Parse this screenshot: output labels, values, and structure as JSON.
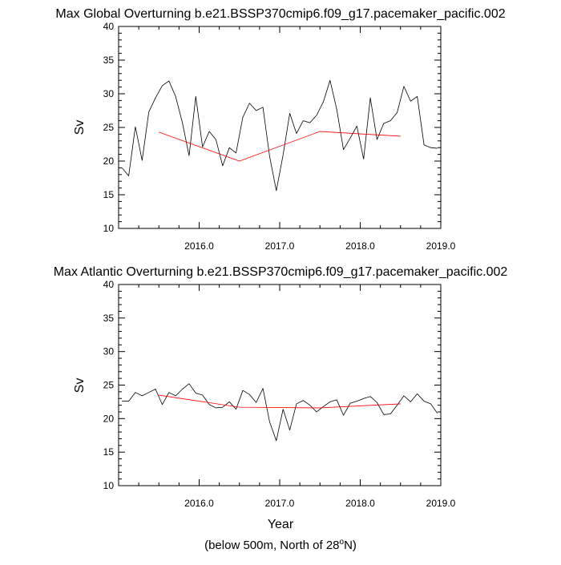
{
  "chart_data": [
    {
      "type": "line",
      "title": "Max Global Overturning b.e21.BSSP370cmip6.f09_g17.pacemaker_pacific.002",
      "ylabel": "Sv",
      "xlabel": "",
      "xlim": [
        2015.0,
        2019.0
      ],
      "ylim": [
        10,
        40
      ],
      "xticks": [
        2016.0,
        2017.0,
        2018.0,
        2019.0
      ],
      "xtick_labels": [
        "2016.0",
        "2017.0",
        "2018.0",
        "2019.0"
      ],
      "yticks": [
        10,
        15,
        20,
        25,
        30,
        35,
        40
      ],
      "series": [
        {
          "color": "#000000",
          "x": [
            2015.042,
            2015.125,
            2015.208,
            2015.292,
            2015.375,
            2015.458,
            2015.542,
            2015.625,
            2015.708,
            2015.792,
            2015.875,
            2015.958,
            2016.042,
            2016.125,
            2016.208,
            2016.292,
            2016.375,
            2016.458,
            2016.542,
            2016.625,
            2016.708,
            2016.792,
            2016.875,
            2016.958,
            2017.042,
            2017.125,
            2017.208,
            2017.292,
            2017.375,
            2017.458,
            2017.542,
            2017.625,
            2017.708,
            2017.792,
            2017.875,
            2017.958,
            2018.042,
            2018.125,
            2018.208,
            2018.292,
            2018.375,
            2018.458,
            2018.542,
            2018.625,
            2018.708,
            2018.792,
            2018.875,
            2018.958
          ],
          "values": [
            19.0,
            17.8,
            25.1,
            20.1,
            27.3,
            29.4,
            31.2,
            31.9,
            29.6,
            25.7,
            20.8,
            29.6,
            22.1,
            24.4,
            23.2,
            19.3,
            22.0,
            21.2,
            26.5,
            28.6,
            27.5,
            28.0,
            20.7,
            15.6,
            20.9,
            27.1,
            24.1,
            26.0,
            25.7,
            26.8,
            28.8,
            32.0,
            27.7,
            21.7,
            23.4,
            25.2,
            20.3,
            29.4,
            23.2,
            25.6,
            26.0,
            27.2,
            31.1,
            28.9,
            29.6,
            22.4,
            22.0,
            21.9
          ]
        },
        {
          "color": "#ff0000",
          "x": [
            2015.5,
            2016.5,
            2017.5,
            2018.5
          ],
          "values": [
            24.3,
            20.0,
            24.4,
            23.7
          ]
        }
      ]
    },
    {
      "type": "line",
      "title": "Max Atlantic Overturning b.e21.BSSP370cmip6.f09_g17.pacemaker_pacific.002",
      "ylabel": "Sv",
      "xlabel": "Year",
      "xlim": [
        2015.0,
        2019.0
      ],
      "ylim": [
        10,
        40
      ],
      "xticks": [
        2016.0,
        2017.0,
        2018.0,
        2019.0
      ],
      "xtick_labels": [
        "2016.0",
        "2017.0",
        "2018.0",
        "2019.0"
      ],
      "yticks": [
        10,
        15,
        20,
        25,
        30,
        35,
        40
      ],
      "series": [
        {
          "color": "#000000",
          "x": [
            2015.042,
            2015.125,
            2015.208,
            2015.292,
            2015.375,
            2015.458,
            2015.542,
            2015.625,
            2015.708,
            2015.792,
            2015.875,
            2015.958,
            2016.042,
            2016.125,
            2016.208,
            2016.292,
            2016.375,
            2016.458,
            2016.542,
            2016.625,
            2016.708,
            2016.792,
            2016.875,
            2016.958,
            2017.042,
            2017.125,
            2017.208,
            2017.292,
            2017.375,
            2017.458,
            2017.542,
            2017.625,
            2017.708,
            2017.792,
            2017.875,
            2017.958,
            2018.042,
            2018.125,
            2018.208,
            2018.292,
            2018.375,
            2018.458,
            2018.542,
            2018.625,
            2018.708,
            2018.792,
            2018.875,
            2018.958
          ],
          "values": [
            22.6,
            22.6,
            23.9,
            23.4,
            23.9,
            24.4,
            22.1,
            23.9,
            23.4,
            24.4,
            25.2,
            23.8,
            23.5,
            22.1,
            21.6,
            21.7,
            22.5,
            21.4,
            24.2,
            23.6,
            22.4,
            24.5,
            19.5,
            16.7,
            21.4,
            18.3,
            22.2,
            22.7,
            22.0,
            21.0,
            21.8,
            22.5,
            22.8,
            20.5,
            22.3,
            22.6,
            23.0,
            23.3,
            22.4,
            20.6,
            20.7,
            22.0,
            23.4,
            22.5,
            23.7,
            22.6,
            22.2,
            20.8
          ]
        },
        {
          "color": "#ff0000",
          "x": [
            2015.5,
            2016.5,
            2017.5,
            2018.5
          ],
          "values": [
            23.5,
            21.7,
            21.6,
            22.2
          ]
        }
      ]
    }
  ],
  "footnote": {
    "text": "(below 500m, North of 28",
    "degree": "o",
    "tail": "N)"
  }
}
